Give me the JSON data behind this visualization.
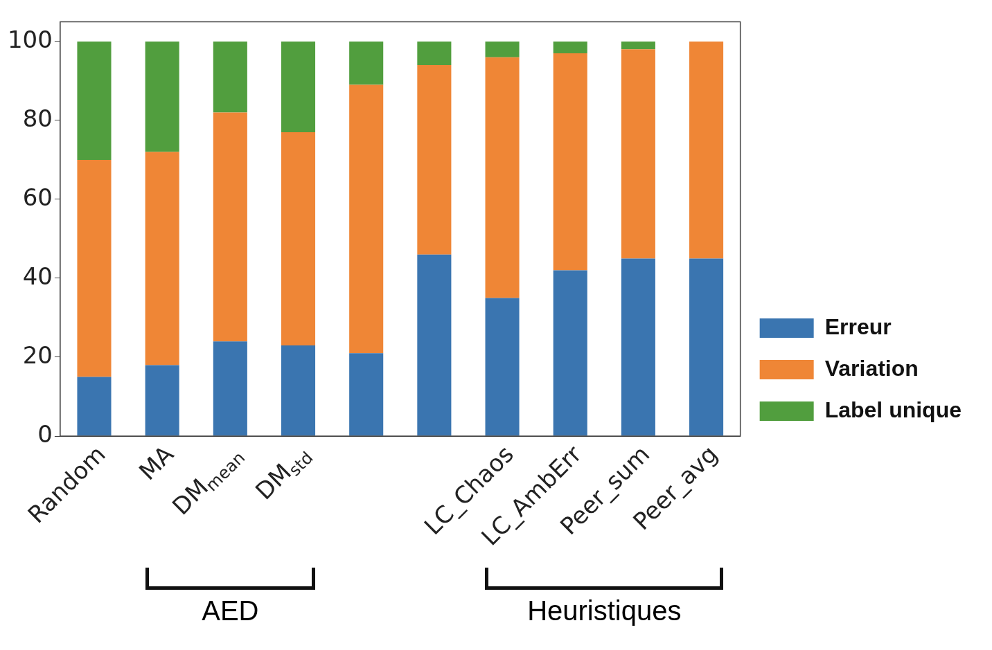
{
  "chart_data": {
    "type": "bar",
    "stacked": true,
    "categories": [
      "Random",
      "MA",
      "DM$_{mean}$",
      "DM$_{std}$",
      null,
      null,
      "LC_Chaos",
      "LC_AmbErr",
      "Peer_sum",
      "Peer_avg"
    ],
    "series": [
      {
        "name": "Erreur",
        "color": "#3a75b0",
        "values": [
          15,
          18,
          24,
          23,
          21,
          46,
          35,
          42,
          45,
          45
        ]
      },
      {
        "name": "Variation",
        "color": "#ef8636",
        "values": [
          55,
          54,
          58,
          54,
          68,
          48,
          61,
          55,
          53,
          55
        ]
      },
      {
        "name": "Label unique",
        "color": "#519e3e",
        "values": [
          30,
          28,
          18,
          23,
          11,
          6,
          4,
          3,
          2,
          0
        ]
      }
    ],
    "ylim": [
      0,
      105
    ],
    "yticks": [
      0,
      20,
      40,
      60,
      80,
      100
    ],
    "grid": false,
    "legend": "bottom right",
    "annotations": [
      "AED",
      "Heuristiques"
    ]
  }
}
